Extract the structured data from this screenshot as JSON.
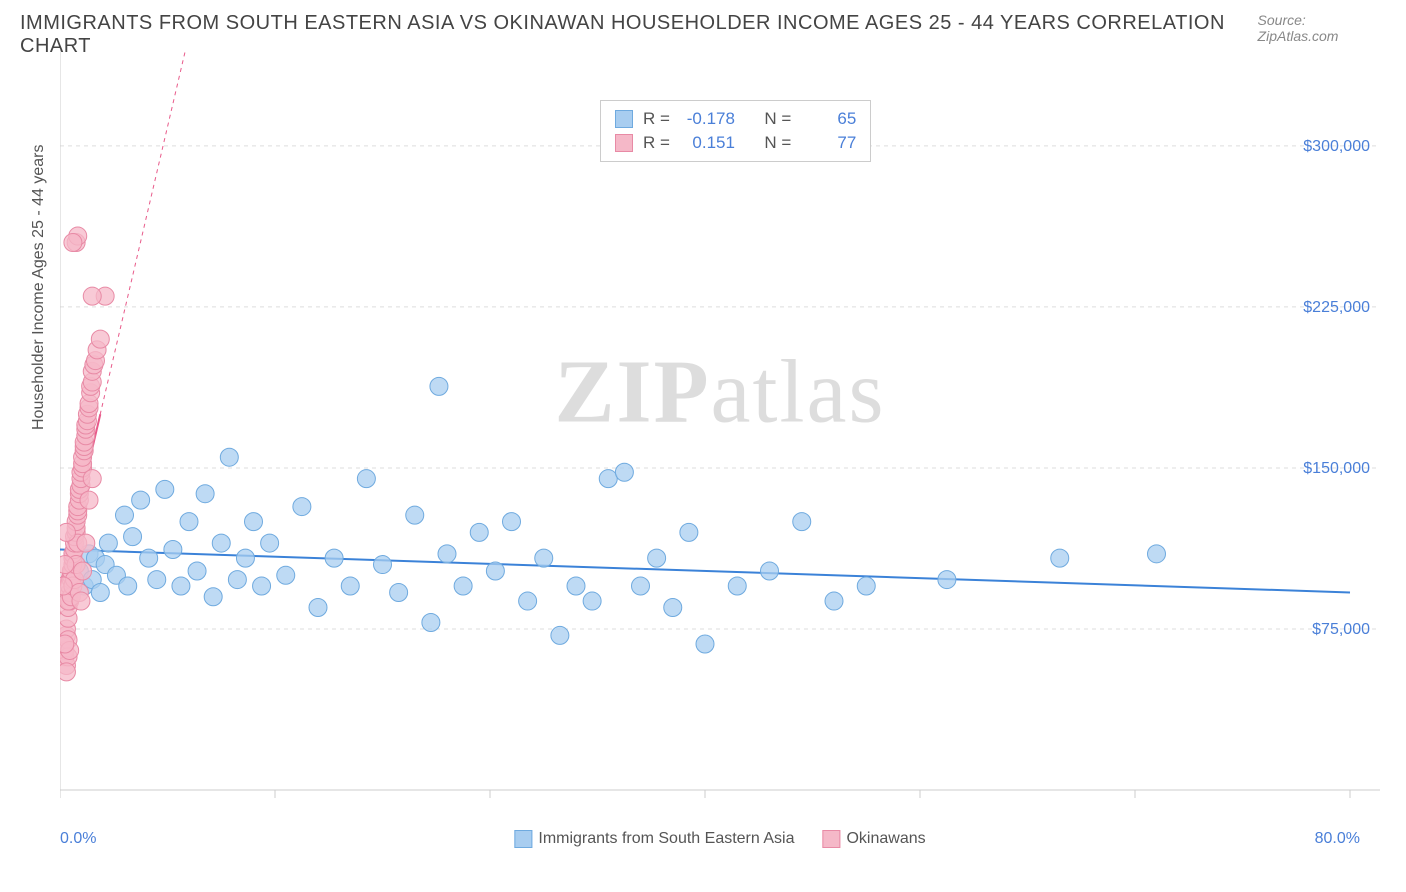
{
  "title": "IMMIGRANTS FROM SOUTH EASTERN ASIA VS OKINAWAN HOUSEHOLDER INCOME AGES 25 - 44 YEARS CORRELATION CHART",
  "source": "Source: ZipAtlas.com",
  "watermark_a": "ZIP",
  "watermark_b": "atlas",
  "chart": {
    "type": "scatter",
    "background_color": "#ffffff",
    "grid_color": "#dddddd",
    "axis_color": "#cccccc",
    "tick_label_color": "#4a7fd8",
    "y_axis": {
      "label": "Householder Income Ages 25 - 44 years",
      "min": 0,
      "max": 340000,
      "ticks": [
        75000,
        150000,
        225000,
        300000
      ],
      "tick_labels": [
        "$75,000",
        "$150,000",
        "$225,000",
        "$300,000"
      ],
      "label_fontsize": 16
    },
    "x_axis": {
      "min": 0,
      "max": 80,
      "min_label": "0.0%",
      "max_label": "80.0%",
      "n_ticks": 7
    },
    "series": [
      {
        "name": "Immigrants from South Eastern Asia",
        "fill_color": "#a8cdf0",
        "stroke_color": "#6faadf",
        "marker_radius": 9,
        "fill_opacity": 0.75,
        "trend": {
          "x1": 0,
          "y1": 112000,
          "x2": 80,
          "y2": 92000,
          "color": "#3b82d8",
          "width": 2,
          "dash": "none"
        },
        "data": [
          [
            1.2,
            102000
          ],
          [
            1.5,
            95000
          ],
          [
            1.8,
            110000
          ],
          [
            2.0,
            98000
          ],
          [
            2.2,
            108000
          ],
          [
            2.5,
            92000
          ],
          [
            2.8,
            105000
          ],
          [
            3.0,
            115000
          ],
          [
            3.5,
            100000
          ],
          [
            4.0,
            128000
          ],
          [
            4.2,
            95000
          ],
          [
            4.5,
            118000
          ],
          [
            5.0,
            135000
          ],
          [
            5.5,
            108000
          ],
          [
            6.0,
            98000
          ],
          [
            6.5,
            140000
          ],
          [
            7.0,
            112000
          ],
          [
            7.5,
            95000
          ],
          [
            8.0,
            125000
          ],
          [
            8.5,
            102000
          ],
          [
            9.0,
            138000
          ],
          [
            9.5,
            90000
          ],
          [
            10.0,
            115000
          ],
          [
            10.5,
            155000
          ],
          [
            11.0,
            98000
          ],
          [
            11.5,
            108000
          ],
          [
            12.0,
            125000
          ],
          [
            12.5,
            95000
          ],
          [
            13.0,
            115000
          ],
          [
            14.0,
            100000
          ],
          [
            15.0,
            132000
          ],
          [
            16.0,
            85000
          ],
          [
            17.0,
            108000
          ],
          [
            18.0,
            95000
          ],
          [
            19.0,
            145000
          ],
          [
            20.0,
            105000
          ],
          [
            21.0,
            92000
          ],
          [
            22.0,
            128000
          ],
          [
            23.0,
            78000
          ],
          [
            23.5,
            188000
          ],
          [
            24.0,
            110000
          ],
          [
            25.0,
            95000
          ],
          [
            26.0,
            120000
          ],
          [
            27.0,
            102000
          ],
          [
            28.0,
            125000
          ],
          [
            29.0,
            88000
          ],
          [
            30.0,
            108000
          ],
          [
            31.0,
            72000
          ],
          [
            32.0,
            95000
          ],
          [
            33.0,
            88000
          ],
          [
            34.0,
            145000
          ],
          [
            35.0,
            148000
          ],
          [
            36.0,
            95000
          ],
          [
            37.0,
            108000
          ],
          [
            38.0,
            85000
          ],
          [
            39.0,
            120000
          ],
          [
            40.0,
            68000
          ],
          [
            42.0,
            95000
          ],
          [
            44.0,
            102000
          ],
          [
            46.0,
            125000
          ],
          [
            48.0,
            88000
          ],
          [
            50.0,
            95000
          ],
          [
            55.0,
            98000
          ],
          [
            62.0,
            108000
          ],
          [
            68.0,
            110000
          ]
        ]
      },
      {
        "name": "Okinawans",
        "fill_color": "#f5b8c8",
        "stroke_color": "#e88aa5",
        "marker_radius": 9,
        "fill_opacity": 0.75,
        "trend": {
          "x1": 0,
          "y1": 95000,
          "x2": 2.5,
          "y2": 175000,
          "ext_x2": 12,
          "ext_y2": 480000,
          "color": "#e85a8a",
          "width": 2,
          "dash": "4,4"
        },
        "data": [
          [
            0.3,
            62000
          ],
          [
            0.3,
            65000
          ],
          [
            0.4,
            72000
          ],
          [
            0.4,
            75000
          ],
          [
            0.5,
            70000
          ],
          [
            0.5,
            80000
          ],
          [
            0.5,
            85000
          ],
          [
            0.6,
            88000
          ],
          [
            0.6,
            92000
          ],
          [
            0.6,
            95000
          ],
          [
            0.7,
            98000
          ],
          [
            0.7,
            100000
          ],
          [
            0.7,
            102000
          ],
          [
            0.8,
            105000
          ],
          [
            0.8,
            108000
          ],
          [
            0.8,
            110000
          ],
          [
            0.9,
            112000
          ],
          [
            0.9,
            115000
          ],
          [
            0.9,
            118000
          ],
          [
            1.0,
            120000
          ],
          [
            1.0,
            122000
          ],
          [
            1.0,
            125000
          ],
          [
            1.1,
            128000
          ],
          [
            1.1,
            130000
          ],
          [
            1.1,
            132000
          ],
          [
            1.2,
            135000
          ],
          [
            1.2,
            138000
          ],
          [
            1.2,
            140000
          ],
          [
            1.3,
            142000
          ],
          [
            1.3,
            145000
          ],
          [
            1.3,
            148000
          ],
          [
            1.4,
            150000
          ],
          [
            1.4,
            152000
          ],
          [
            1.4,
            155000
          ],
          [
            1.5,
            158000
          ],
          [
            1.5,
            160000
          ],
          [
            1.5,
            162000
          ],
          [
            1.6,
            165000
          ],
          [
            1.6,
            168000
          ],
          [
            1.6,
            170000
          ],
          [
            1.7,
            172000
          ],
          [
            1.7,
            175000
          ],
          [
            1.8,
            178000
          ],
          [
            1.8,
            180000
          ],
          [
            1.9,
            185000
          ],
          [
            1.9,
            188000
          ],
          [
            2.0,
            190000
          ],
          [
            2.0,
            195000
          ],
          [
            2.1,
            198000
          ],
          [
            2.2,
            200000
          ],
          [
            2.3,
            205000
          ],
          [
            2.5,
            210000
          ],
          [
            0.4,
            58000
          ],
          [
            0.5,
            62000
          ],
          [
            0.6,
            65000
          ],
          [
            0.4,
            55000
          ],
          [
            0.3,
            68000
          ],
          [
            0.5,
            88000
          ],
          [
            0.7,
            90000
          ],
          [
            0.8,
            95000
          ],
          [
            0.9,
            98000
          ],
          [
            1.0,
            105000
          ],
          [
            1.1,
            115000
          ],
          [
            1.2,
            92000
          ],
          [
            1.3,
            88000
          ],
          [
            1.4,
            102000
          ],
          [
            1.6,
            115000
          ],
          [
            0.2,
            95000
          ],
          [
            0.3,
            105000
          ],
          [
            0.4,
            120000
          ],
          [
            1.8,
            135000
          ],
          [
            2.0,
            145000
          ],
          [
            1.0,
            255000
          ],
          [
            1.1,
            258000
          ],
          [
            0.8,
            255000
          ],
          [
            2.8,
            230000
          ],
          [
            2.0,
            230000
          ]
        ]
      }
    ],
    "stats": [
      {
        "r_label": "R =",
        "r": "-0.178",
        "n_label": "N =",
        "n": "65"
      },
      {
        "r_label": "R =",
        "r": "0.151",
        "n_label": "N =",
        "n": "77"
      }
    ]
  },
  "bottom_legend": {
    "series1": "Immigrants from South Eastern Asia",
    "series2": "Okinawans"
  }
}
